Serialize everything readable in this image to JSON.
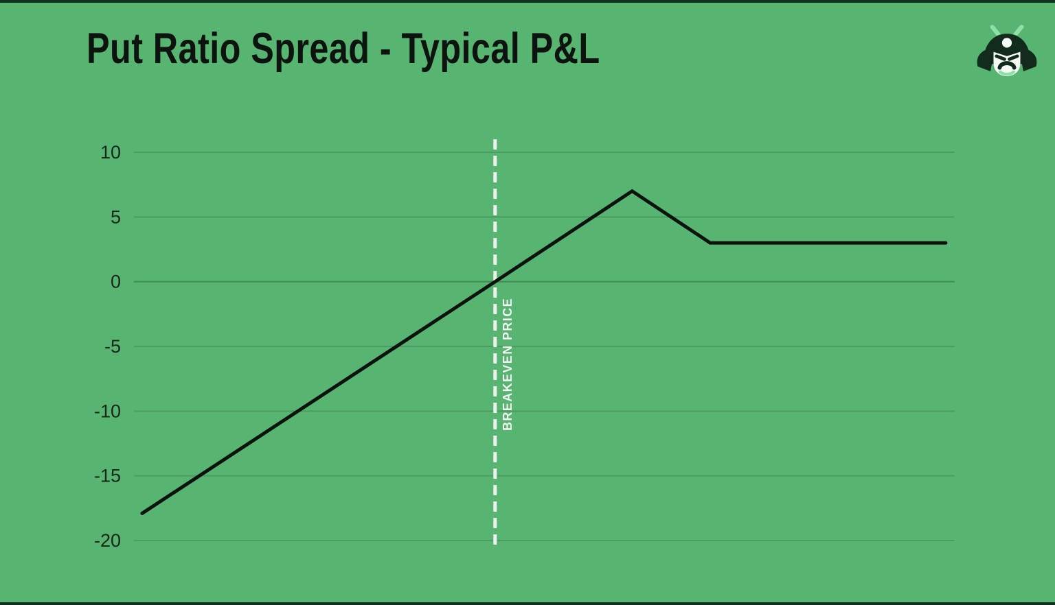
{
  "page": {
    "title": "Put Ratio Spread - Typical P&L"
  },
  "logo": {
    "icon": "samurai-helmet",
    "colors": {
      "dark": "#122b1c",
      "green": "#8de0a6",
      "white": "#f6faf6"
    }
  },
  "colors": {
    "background": "#58b471",
    "pnl_line": "#0c130e",
    "gridline": "rgba(15,50,30,0.18)",
    "gridline_zero": "rgba(15,50,30,0.32)",
    "breakeven_dash": "#edf1ed",
    "tick_text": "#17271b",
    "title_text": "#0d140f"
  },
  "chart_data": {
    "type": "line",
    "title": "Put Ratio Spread - Typical P&L",
    "xlabel": "",
    "ylabel": "",
    "x_axis_labels_visible": false,
    "grid": "horizontal-only",
    "ylim": [
      -20,
      10
    ],
    "y_ticks": [
      10,
      5,
      0,
      -5,
      -10,
      -15,
      -20
    ],
    "series": [
      {
        "name": "Put Ratio Spread P&L",
        "color": "#0c130e",
        "points": [
          {
            "x_pct": 1.0,
            "y": -17.9
          },
          {
            "x_pct": 44.0,
            "y": 0
          },
          {
            "x_pct": 60.7,
            "y": 7
          },
          {
            "x_pct": 70.2,
            "y": 3
          },
          {
            "x_pct": 98.9,
            "y": 3
          }
        ]
      }
    ],
    "annotations": [
      {
        "type": "vline",
        "label": "BREAKEVEN PRICE",
        "x_pct": 44.0,
        "style": "dashed",
        "color": "#edf1ed"
      }
    ]
  }
}
